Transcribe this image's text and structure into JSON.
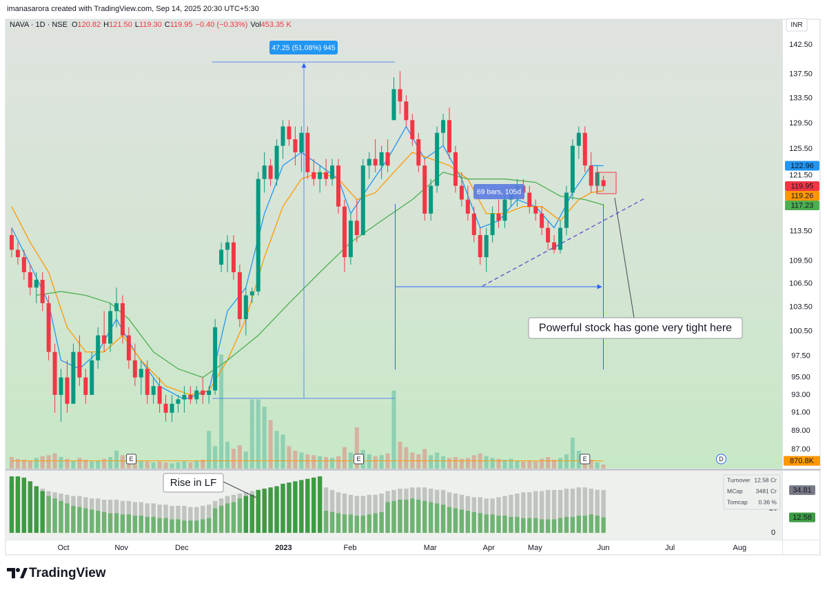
{
  "header": {
    "credit": "imanasarora created with TradingView.com, Sep 14, 2025 20:30 UTC+5:30"
  },
  "legend": {
    "symbol": "NAVA · 1D · NSE",
    "items": [
      {
        "key": "O",
        "value": "120.82"
      },
      {
        "key": "H",
        "value": "121.50"
      },
      {
        "key": "L",
        "value": "119.30"
      },
      {
        "key": "C",
        "value": "119.95"
      }
    ],
    "change": "−0.40 (−0.33%)",
    "volume": {
      "key": "Vol",
      "value": "453.35 K"
    }
  },
  "currency": "INR",
  "brand": "TradingView",
  "chart_data": [
    {
      "type": "candlestick",
      "log_scale": true,
      "grid": false,
      "up_color": "#089981",
      "down_color": "#f23645",
      "ylim": [
        85,
        147
      ],
      "yticks": [
        {
          "value": 142.5,
          "label": "142.50"
        },
        {
          "value": 137.5,
          "label": "137.50"
        },
        {
          "value": 133.5,
          "label": "133.50"
        },
        {
          "value": 129.5,
          "label": "129.50"
        },
        {
          "value": 125.5,
          "label": "125.50"
        },
        {
          "value": 121.5,
          "label": "121.50"
        },
        {
          "value": 113.5,
          "label": "113.50"
        },
        {
          "value": 109.5,
          "label": "109.50"
        },
        {
          "value": 106.5,
          "label": "106.50"
        },
        {
          "value": 103.5,
          "label": "103.50"
        },
        {
          "value": 100.5,
          "label": "100.50"
        },
        {
          "value": 97.5,
          "label": "97.50"
        },
        {
          "value": 95,
          "label": "95.00"
        },
        {
          "value": 93,
          "label": "93.00"
        },
        {
          "value": 91,
          "label": "91.00"
        },
        {
          "value": 89,
          "label": "89.00"
        },
        {
          "value": 87,
          "label": "87.00"
        }
      ],
      "xlim": [
        -1,
        125
      ],
      "xticks": [
        {
          "value": 8.4,
          "label": "Oct"
        },
        {
          "value": 17.8,
          "label": "Nov"
        },
        {
          "value": 27.6,
          "label": "Dec"
        },
        {
          "value": 44.1,
          "label": "2023"
        },
        {
          "value": 54.9,
          "label": "Feb"
        },
        {
          "value": 67.9,
          "label": "Mar"
        },
        {
          "value": 77.4,
          "label": "Apr"
        },
        {
          "value": 84.9,
          "label": "May"
        },
        {
          "value": 96,
          "label": "Jun"
        },
        {
          "value": 106.8,
          "label": "Jul"
        },
        {
          "value": 118.1,
          "label": "Aug"
        }
      ],
      "ohlc": [
        [
          113,
          114,
          110,
          111
        ],
        [
          111,
          112,
          109,
          110
        ],
        [
          110,
          111,
          107,
          108
        ],
        [
          108,
          109,
          105,
          106
        ],
        [
          106,
          108,
          104,
          107
        ],
        [
          107,
          108,
          103,
          104
        ],
        [
          104,
          105,
          97,
          98
        ],
        [
          98,
          99,
          91,
          93
        ],
        [
          93,
          96,
          90,
          95
        ],
        [
          95,
          97,
          91,
          92
        ],
        [
          92,
          99,
          92,
          98
        ],
        [
          98,
          100,
          94,
          95
        ],
        [
          95,
          96,
          92,
          93
        ],
        [
          93,
          98,
          93,
          97
        ],
        [
          97,
          101,
          96,
          100
        ],
        [
          100,
          103,
          98,
          99
        ],
        [
          99,
          104,
          98,
          103
        ],
        [
          103,
          106,
          101,
          104
        ],
        [
          104,
          105,
          99,
          100
        ],
        [
          100,
          101,
          96,
          97
        ],
        [
          97,
          99,
          94,
          95
        ],
        [
          95,
          97,
          93,
          96
        ],
        [
          96,
          97,
          92,
          93
        ],
        [
          93,
          95,
          92,
          94
        ],
        [
          94,
          95,
          91,
          92
        ],
        [
          92,
          93,
          90,
          91
        ],
        [
          91,
          93,
          90,
          92
        ],
        [
          92,
          93,
          91,
          92.5
        ],
        [
          92.5,
          94,
          91,
          93
        ],
        [
          93,
          94,
          92,
          92.5
        ],
        [
          92.5,
          94,
          92,
          93.5
        ],
        [
          93.5,
          95,
          92,
          93
        ],
        [
          93,
          94,
          92,
          93.5
        ],
        [
          93.5,
          102,
          93,
          101
        ],
        [
          109,
          112,
          108,
          111
        ],
        [
          111,
          113,
          108,
          112
        ],
        [
          112,
          113,
          107,
          108
        ],
        [
          108,
          109,
          101,
          102
        ],
        [
          102,
          106,
          100,
          105
        ],
        [
          105,
          106,
          104,
          105.5
        ],
        [
          105.5,
          122,
          105,
          121
        ],
        [
          121,
          125,
          119,
          123
        ],
        [
          123,
          124,
          120,
          121
        ],
        [
          121,
          127,
          120,
          126
        ],
        [
          126,
          130,
          124,
          129
        ],
        [
          129,
          130,
          126,
          127
        ],
        [
          127,
          129,
          123,
          125
        ],
        [
          125,
          129,
          122,
          128
        ],
        [
          128,
          129,
          121,
          122
        ],
        [
          122,
          124,
          120,
          121
        ],
        [
          121,
          123,
          119,
          122
        ],
        [
          122,
          124,
          120,
          121
        ],
        [
          121,
          124,
          120,
          123
        ],
        [
          123,
          124,
          116,
          117
        ],
        [
          117,
          118,
          108,
          110
        ],
        [
          110,
          116,
          109,
          115
        ],
        [
          115,
          118,
          112,
          113
        ],
        [
          113,
          124,
          113,
          123
        ],
        [
          123,
          125,
          121,
          124
        ],
        [
          124,
          127,
          122,
          123
        ],
        [
          123,
          126,
          121,
          125
        ],
        [
          125,
          127,
          122,
          123
        ],
        [
          130,
          137,
          130,
          135
        ],
        [
          135,
          138,
          131,
          133
        ],
        [
          133,
          134,
          129,
          130
        ],
        [
          130,
          131,
          126,
          127
        ],
        [
          127,
          128,
          122,
          123
        ],
        [
          123,
          124,
          115,
          116
        ],
        [
          116,
          121,
          115,
          120
        ],
        [
          120,
          129,
          119,
          128
        ],
        [
          128,
          131,
          126,
          130
        ],
        [
          130,
          132,
          124,
          125
        ],
        [
          125,
          126,
          119,
          120
        ],
        [
          120,
          122,
          117,
          118
        ],
        [
          118,
          120,
          115,
          116
        ],
        [
          116,
          117,
          112,
          113
        ],
        [
          113,
          114,
          109,
          110
        ],
        [
          110,
          114,
          108,
          113
        ],
        [
          113,
          117,
          112,
          116
        ],
        [
          116,
          118,
          114,
          115
        ],
        [
          115,
          119,
          114,
          118
        ],
        [
          118,
          120,
          117,
          119
        ],
        [
          119,
          121,
          117,
          120
        ],
        [
          120,
          121,
          118,
          119
        ],
        [
          119,
          120,
          116,
          117
        ],
        [
          117,
          118,
          115,
          116
        ],
        [
          116,
          117,
          113,
          114
        ],
        [
          114,
          115,
          111,
          112
        ],
        [
          112,
          113,
          110.5,
          111
        ],
        [
          111,
          115,
          110.5,
          114
        ],
        [
          114,
          120,
          113,
          119
        ],
        [
          119,
          127,
          118,
          126
        ],
        [
          126,
          129,
          124,
          128
        ],
        [
          128,
          129,
          122,
          123
        ],
        [
          123,
          125,
          119,
          120
        ],
        [
          120,
          123,
          119,
          122
        ],
        [
          120.82,
          121.5,
          119.3,
          119.95
        ]
      ],
      "volume": [
        1300,
        1100,
        1000,
        900,
        1200,
        1400,
        1500,
        1700,
        1300,
        1100,
        900,
        1200,
        1000,
        800,
        900,
        1100,
        1300,
        2000,
        1500,
        1200,
        1000,
        900,
        800,
        700,
        800,
        700,
        600,
        700,
        800,
        700,
        900,
        1000,
        4200,
        2500,
        12700,
        3000,
        2200,
        2600,
        1900,
        7700,
        7700,
        6900,
        5400,
        4200,
        3800,
        2500,
        2000,
        1800,
        1600,
        1500,
        1400,
        1300,
        1200,
        1400,
        2400,
        1800,
        4600,
        2100,
        1600,
        1400,
        1500,
        1700,
        8700,
        3000,
        2400,
        1800,
        1600,
        2200,
        1500,
        1800,
        1400,
        1200,
        1300,
        1100,
        1200,
        1500,
        1700,
        1400,
        1200,
        1100,
        1000,
        1100,
        900,
        800,
        900,
        800,
        1100,
        1300,
        1000,
        1200,
        1600,
        3450,
        2000,
        1400,
        1000,
        700,
        453.35
      ],
      "volume_lim": [
        0,
        50000
      ],
      "volume_avg": {
        "value": 870.8,
        "label": "870.8K",
        "color": "#ff9800"
      },
      "series": [
        {
          "color": "#2196f3",
          "x": [
            0,
            3,
            6,
            8,
            11,
            14,
            17,
            20,
            24,
            28,
            32,
            35,
            38,
            41,
            44,
            47,
            50,
            53,
            55,
            58,
            61,
            64,
            67,
            70,
            73,
            76,
            79,
            82,
            85,
            88,
            91,
            94,
            96
          ],
          "values": [
            114,
            109,
            104,
            97,
            96,
            98,
            102,
            98,
            94,
            92.5,
            93.5,
            103,
            106,
            116,
            123,
            125,
            123,
            121,
            116,
            120,
            124,
            129,
            124,
            126,
            121,
            114,
            115,
            118,
            117,
            114,
            119,
            123,
            122.96
          ]
        },
        {
          "color": "#ff9800",
          "x": [
            0,
            3,
            6,
            9,
            12,
            15,
            18,
            21,
            25,
            29,
            32,
            35,
            38,
            41,
            44,
            47,
            50,
            53,
            56,
            59,
            62,
            65,
            68,
            71,
            74,
            77,
            80,
            83,
            86,
            89,
            92,
            94,
            96
          ],
          "values": [
            117,
            112,
            108,
            101,
            98,
            98,
            100,
            97,
            94,
            93,
            93.5,
            97,
            102,
            110,
            117,
            121,
            122,
            121,
            118,
            119,
            122,
            125,
            124,
            123,
            121,
            116,
            116,
            117,
            117,
            115,
            118,
            119,
            119.26
          ]
        },
        {
          "color": "#4caf50",
          "x": [
            4,
            8,
            12,
            16,
            19,
            23,
            27,
            31,
            35,
            40,
            45,
            50,
            55,
            60,
            65,
            70,
            74,
            80,
            85,
            89,
            93,
            96
          ],
          "values": [
            105,
            105.5,
            105,
            104,
            102,
            98,
            96,
            95,
            97,
            100,
            104,
            108,
            112,
            115,
            118,
            122,
            121,
            121,
            120.5,
            118.5,
            118,
            117.23
          ]
        }
      ],
      "events": [
        {
          "label": "E",
          "x": 19.4
        },
        {
          "label": "E",
          "x": 56.3
        },
        {
          "label": "E",
          "x": 93
        },
        {
          "label": "D",
          "x": 115.1
        }
      ],
      "annotations": {
        "price_range": "47.25 (51.08%) 945",
        "date_range": "69 bars, 105d",
        "callout": "Powerful stock has gone very tight here"
      }
    },
    {
      "type": "bar",
      "ylim": [
        -5,
        50
      ],
      "yticks": [
        0,
        20,
        40
      ],
      "series": [
        {
          "color": "#bfc4bf",
          "values": [
            40,
            40,
            39,
            38,
            37,
            36,
            34,
            33,
            32,
            31,
            30,
            30,
            29,
            28,
            28,
            27,
            27,
            27,
            26,
            26,
            25,
            25,
            24,
            24,
            23,
            23,
            22,
            22,
            22,
            21,
            21,
            22,
            23,
            26,
            28,
            30,
            31,
            32,
            33,
            34,
            33,
            33,
            34,
            34,
            35,
            36,
            36,
            37,
            38,
            38,
            38,
            37,
            35,
            33,
            32,
            31,
            30,
            30,
            31,
            31,
            32,
            34,
            35,
            36,
            36,
            37,
            37,
            37,
            36,
            35,
            35,
            33,
            32,
            31,
            30,
            29,
            29,
            28,
            28,
            29,
            30,
            31,
            32,
            33,
            33,
            34,
            34,
            35,
            35,
            35,
            36,
            36,
            37,
            37,
            36,
            35,
            34.81
          ]
        },
        {
          "color": "#6fb372",
          "highlight_color": "#3e9b43",
          "values": [
            46,
            46,
            45,
            42,
            38,
            34,
            30,
            28,
            26,
            24,
            22,
            21,
            20,
            19,
            18,
            17,
            16,
            16,
            15,
            15,
            14,
            14,
            13,
            13,
            12,
            12,
            11,
            11,
            10,
            10,
            10,
            11,
            12,
            20,
            22,
            24,
            25,
            28,
            30,
            31,
            35,
            36,
            37,
            38,
            40,
            41,
            42,
            43,
            44,
            45,
            46,
            18,
            17,
            16,
            15,
            15,
            14,
            14,
            15,
            16,
            17,
            25,
            26,
            27,
            27,
            28,
            27,
            26,
            25,
            24,
            23,
            21,
            20,
            19,
            18,
            17,
            16,
            15,
            15,
            14,
            14,
            13,
            13,
            12,
            12,
            12,
            11,
            11,
            11,
            12,
            13,
            13,
            14,
            14,
            15,
            14,
            12.58
          ]
        }
      ],
      "annotation": "Rise in LF",
      "status": {
        "rows": [
          [
            "Turnover",
            "12.58 Cr"
          ],
          [
            "MCap",
            "3481 Cr"
          ],
          [
            "Tomcap",
            "0.36 %"
          ]
        ]
      }
    }
  ]
}
